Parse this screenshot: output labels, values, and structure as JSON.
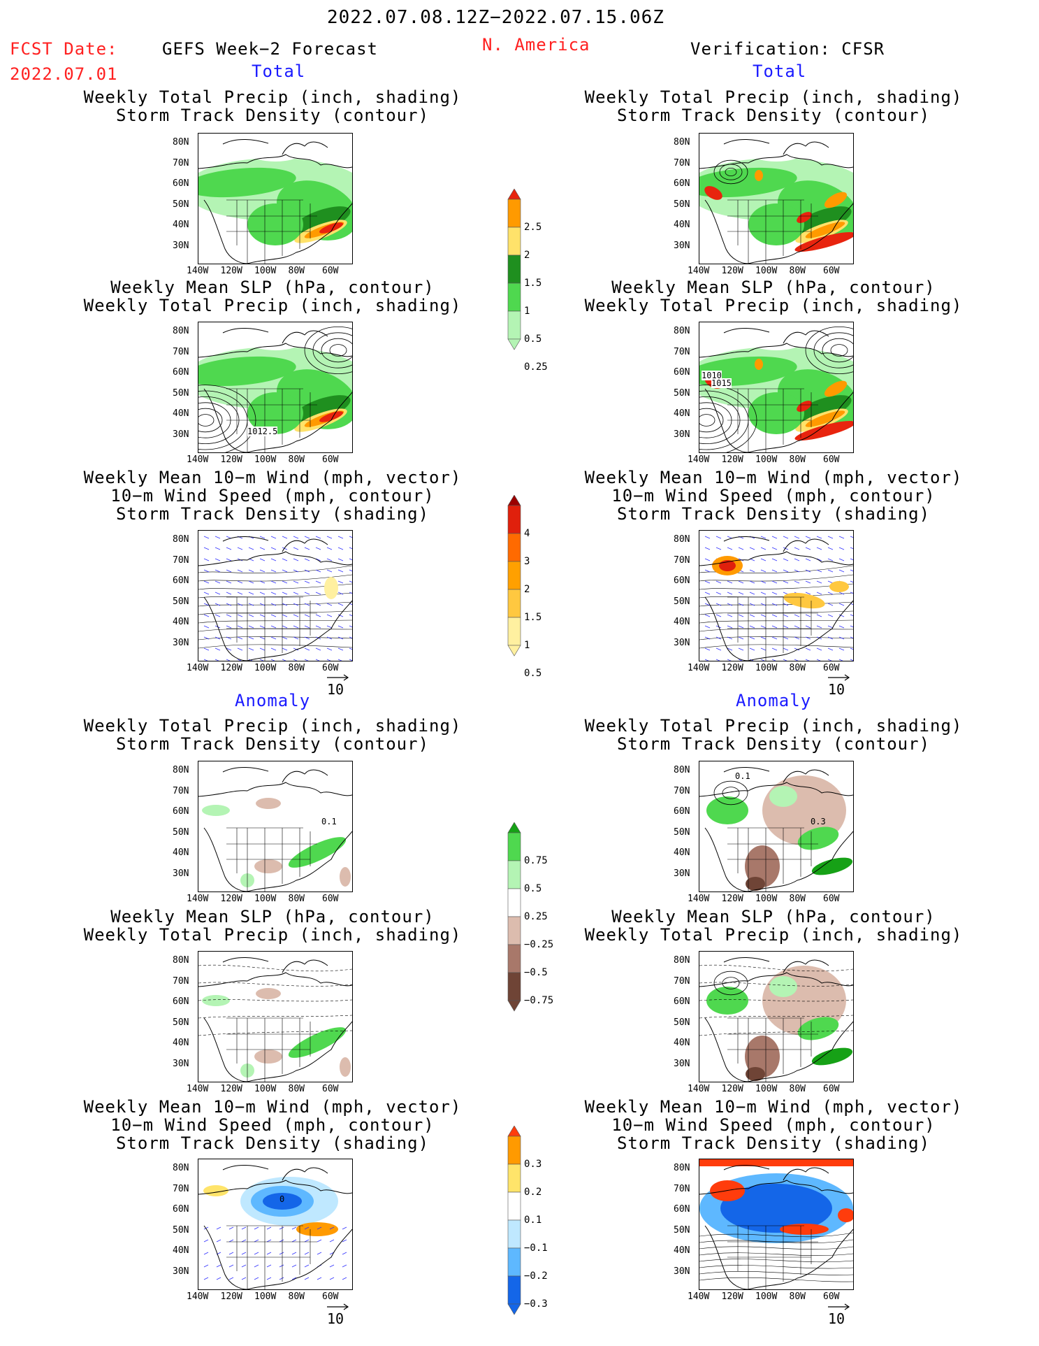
{
  "header": {
    "date_range": "2022.07.08.12Z−2022.07.15.06Z",
    "fcst_label": "FCST Date:",
    "fcst_date": "2022.07.01",
    "left_title": "GEFS Week−2 Forecast",
    "region": "N. America",
    "right_title": "Verification: CFSR"
  },
  "sections": {
    "total": "Total",
    "anomaly": "Anomaly"
  },
  "panel_titles": {
    "precip_storm": [
      "Weekly Total Precip (inch, shading)",
      "Storm Track Density (contour)"
    ],
    "slp_precip": [
      "Weekly Mean SLP (hPa, contour)",
      "Weekly Total Precip (inch, shading)"
    ],
    "wind": [
      "Weekly Mean 10−m Wind (mph, vector)",
      "10−m Wind Speed (mph, contour)",
      "Storm Track Density (shading)"
    ]
  },
  "axes": {
    "lat_ticks": [
      "80N",
      "70N",
      "60N",
      "50N",
      "40N",
      "30N"
    ],
    "lon_ticks": [
      "140W",
      "120W",
      "100W",
      "80W",
      "60W"
    ]
  },
  "vector_ref": "10",
  "contour_labels": {
    "fcst_slp": "1012.5",
    "obs_slp_a": "1010",
    "obs_slp_b": "1015",
    "fcst_anom_storm": "0.1",
    "obs_anom_storm_a": "0.1",
    "obs_anom_storm_b": "0.3",
    "fcst_anom_wind": "0"
  },
  "colorbars": {
    "precip_total": {
      "labels": [
        "2.5",
        "2",
        "1.5",
        "1",
        "0.5",
        "0.25"
      ],
      "colors": [
        "#e8240e",
        "#ff9a00",
        "#ffe26a",
        "#1f8f1f",
        "#4fd84f",
        "#b4f4b4"
      ]
    },
    "storm_total": {
      "labels": [
        "4",
        "3",
        "2",
        "1.5",
        "1",
        "0.5"
      ],
      "colors": [
        "#9b0000",
        "#e0200c",
        "#ff6a00",
        "#ffa000",
        "#ffc840",
        "#fff0a0"
      ]
    },
    "precip_anom": {
      "labels": [
        "0.75",
        "0.5",
        "0.25",
        "−0.25",
        "−0.5",
        "−0.75"
      ],
      "colors": [
        "#16a116",
        "#4fd84f",
        "#b4f4b4",
        "#ffffff",
        "#dcbcae",
        "#a8786a",
        "#6f4436"
      ]
    },
    "storm_anom": {
      "labels": [
        "0.3",
        "0.2",
        "0.1",
        "−0.1",
        "−0.2",
        "−0.3"
      ],
      "colors": [
        "#ff3c0c",
        "#ff9a00",
        "#ffe46a",
        "#ffffff",
        "#bfe8ff",
        "#5eb8ff",
        "#1466e8"
      ]
    }
  }
}
